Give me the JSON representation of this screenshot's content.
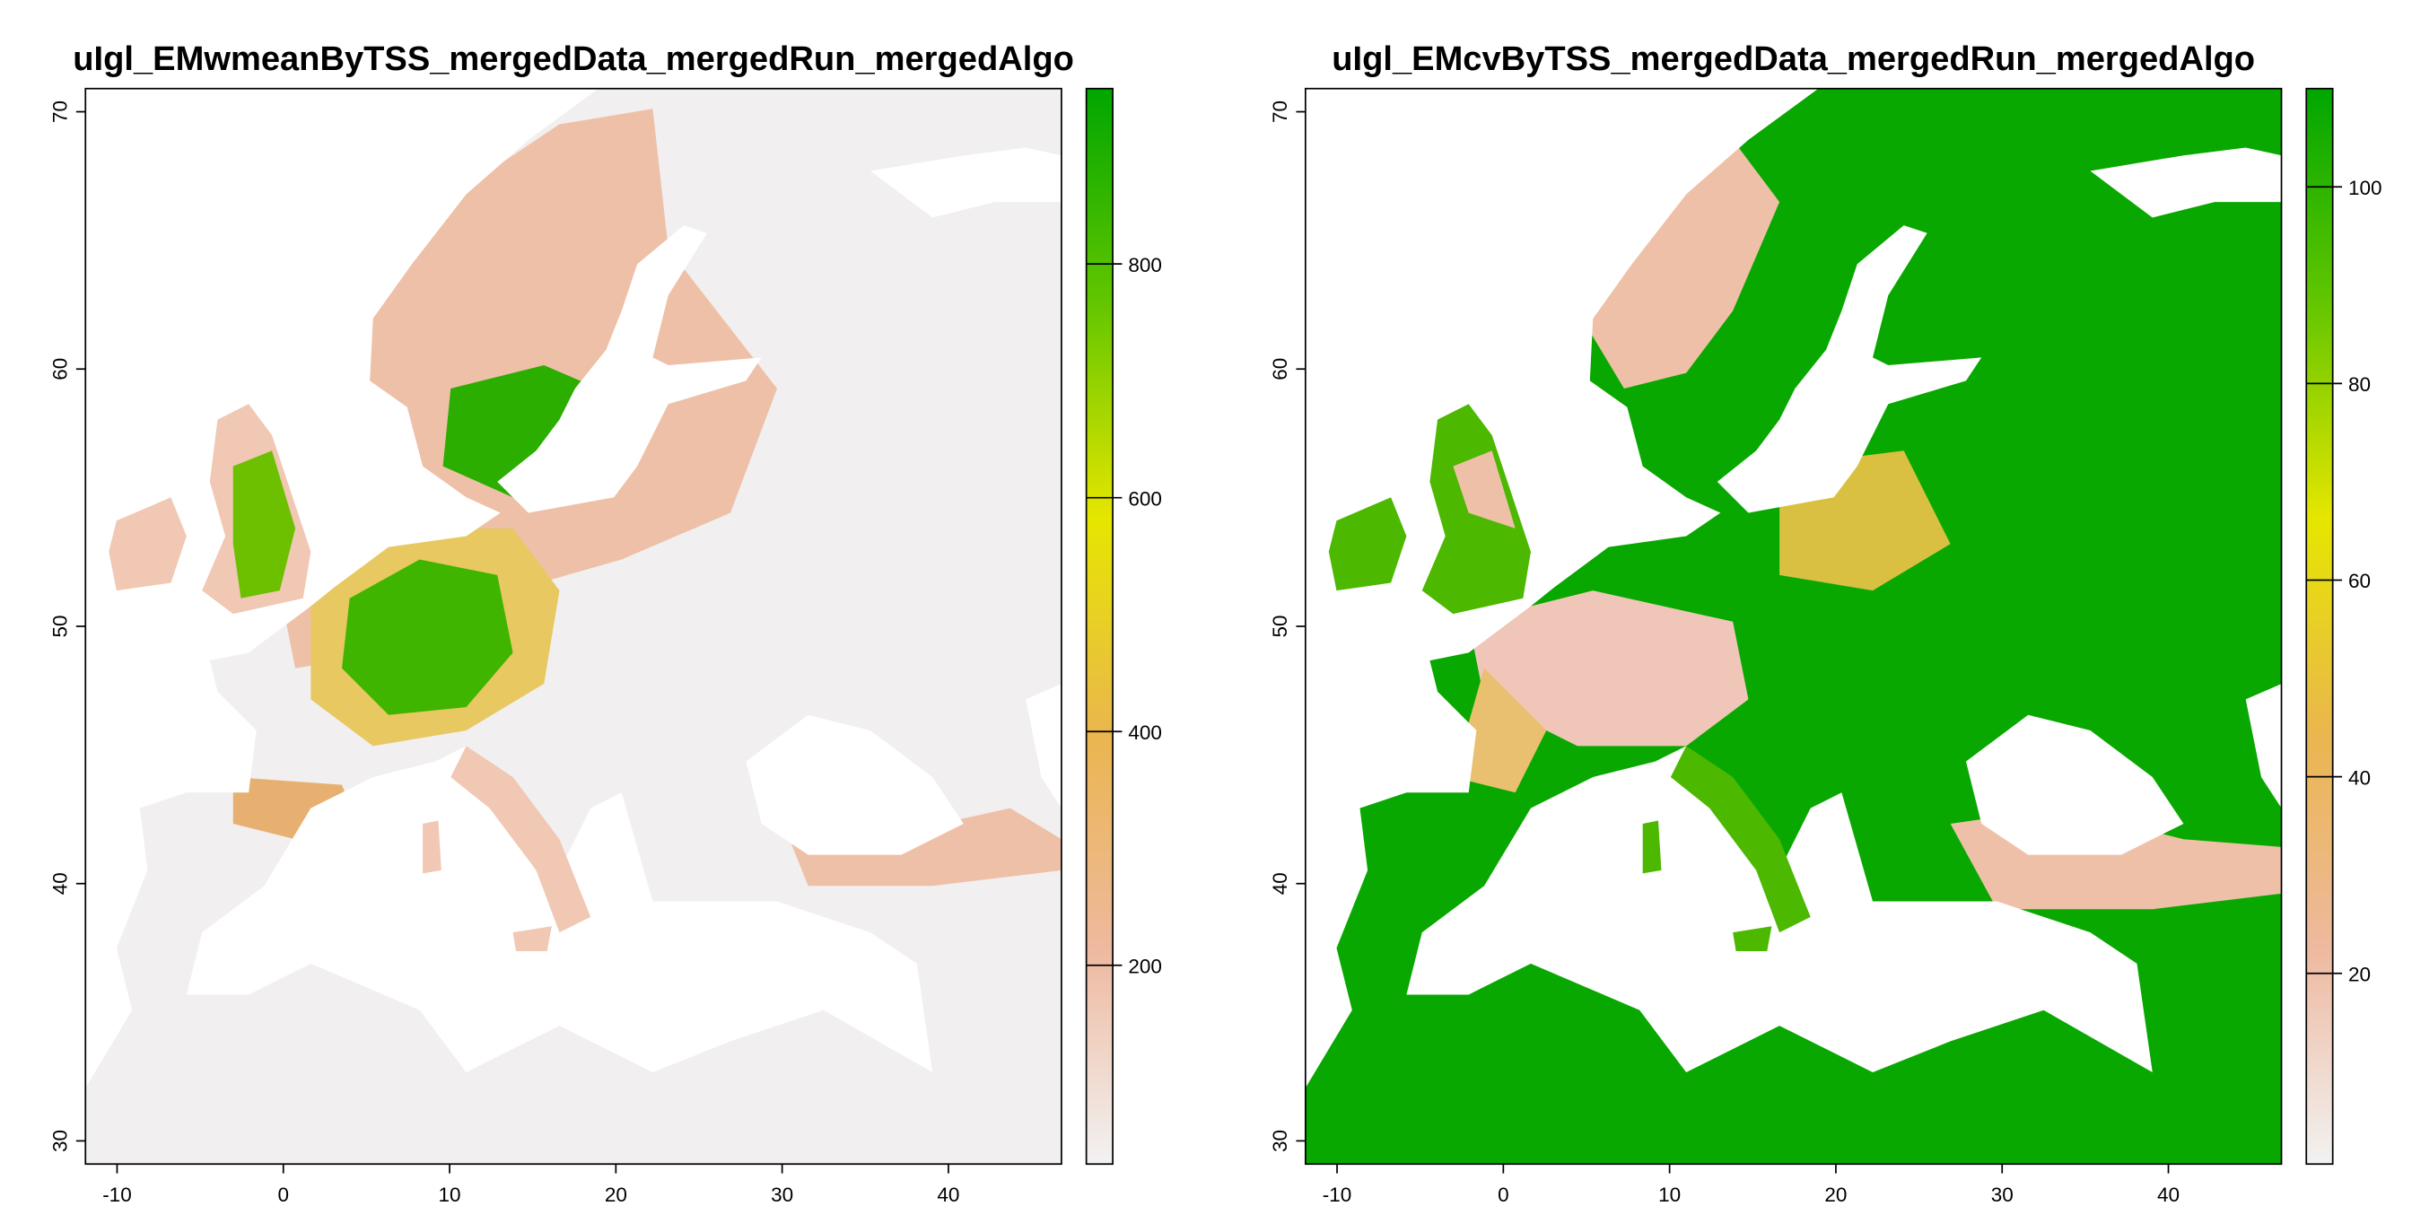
{
  "chart_data": [
    {
      "type": "raster",
      "title": "uIgl_EMwmeanByTSS_mergedData_mergedRun_mergedAlgo",
      "xlim": [
        -11.9,
        46.8
      ],
      "ylim": [
        29.1,
        70.9
      ],
      "xticks": [
        -10,
        0,
        10,
        20,
        30,
        40
      ],
      "yticks": [
        30,
        40,
        50,
        60,
        70
      ],
      "zlim": [
        30,
        950
      ],
      "zticks": [
        200,
        400,
        600,
        800
      ],
      "colors": [
        "#F2F2F2",
        "#EEB99F",
        "#EAB64E",
        "#E6E600",
        "#63C600",
        "#00A600"
      ]
    },
    {
      "type": "raster",
      "title": "uIgl_EMcvByTSS_mergedData_mergedRun_mergedAlgo",
      "xlim": [
        -11.9,
        46.8
      ],
      "ylim": [
        29.1,
        70.9
      ],
      "xticks": [
        -10,
        0,
        10,
        20,
        30,
        40
      ],
      "yticks": [
        30,
        40,
        50,
        60,
        70
      ],
      "zlim": [
        0.6,
        110
      ],
      "zticks": [
        20,
        40,
        60,
        80,
        100
      ],
      "colors": [
        "#F2F2F2",
        "#EEB99F",
        "#EAB64E",
        "#E6E600",
        "#63C600",
        "#00A600"
      ]
    }
  ]
}
